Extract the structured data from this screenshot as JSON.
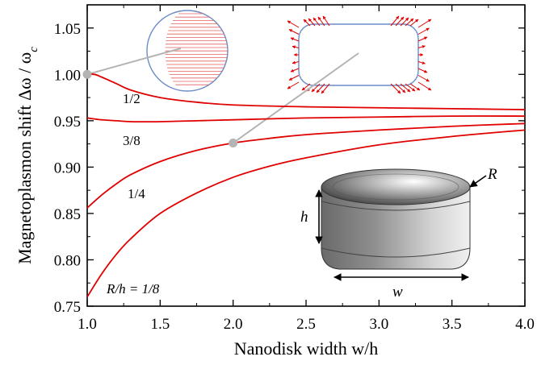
{
  "chart_data": {
    "type": "line",
    "title": "",
    "xlabel": "Nanodisk width w/h",
    "ylabel": "Magnetoplasmon shift Δω / ω",
    "ylabel_subscript": "c",
    "xlim": [
      1.0,
      4.0
    ],
    "ylim": [
      0.75,
      1.075
    ],
    "xticks": [
      "1.0",
      "1.5",
      "2.0",
      "2.5",
      "3.0",
      "3.5",
      "4.0"
    ],
    "yticks": [
      "0.75",
      "0.80",
      "0.85",
      "0.90",
      "0.95",
      "1.00",
      "1.05"
    ],
    "grid": false,
    "line_color": "#e00000",
    "series": [
      {
        "name": "1/2",
        "label_text": "1/2",
        "x": [
          1.0,
          1.05,
          1.1,
          1.2,
          1.3,
          1.5,
          1.75,
          2.0,
          2.5,
          3.0,
          3.5,
          4.0
        ],
        "y": [
          1.0,
          1.0,
          0.997,
          0.99,
          0.983,
          0.975,
          0.97,
          0.967,
          0.965,
          0.964,
          0.963,
          0.962
        ]
      },
      {
        "name": "3/8",
        "label_text": "3/8",
        "x": [
          1.0,
          1.1,
          1.2,
          1.3,
          1.5,
          1.75,
          2.0,
          2.5,
          3.0,
          3.5,
          4.0
        ],
        "y": [
          0.953,
          0.951,
          0.95,
          0.949,
          0.949,
          0.95,
          0.951,
          0.953,
          0.954,
          0.955,
          0.955
        ]
      },
      {
        "name": "1/4",
        "label_text": "1/4",
        "x": [
          1.0,
          1.1,
          1.2,
          1.3,
          1.5,
          1.75,
          2.0,
          2.25,
          2.5,
          3.0,
          3.5,
          4.0
        ],
        "y": [
          0.856,
          0.87,
          0.882,
          0.892,
          0.906,
          0.918,
          0.926,
          0.931,
          0.935,
          0.94,
          0.944,
          0.947
        ]
      },
      {
        "name": "R/h = 1/8",
        "label_text": "R/h = 1/8",
        "x": [
          1.0,
          1.1,
          1.2,
          1.3,
          1.5,
          1.75,
          2.0,
          2.25,
          2.5,
          3.0,
          3.5,
          4.0
        ],
        "y": [
          0.76,
          0.785,
          0.806,
          0.823,
          0.85,
          0.872,
          0.889,
          0.901,
          0.91,
          0.924,
          0.933,
          0.94
        ]
      }
    ],
    "markers": [
      {
        "x": 1.0,
        "y": 1.0
      },
      {
        "x": 2.0,
        "y": 0.926
      }
    ],
    "inset": {
      "height_label": "h",
      "width_label": "w",
      "radius_label": "R"
    }
  }
}
